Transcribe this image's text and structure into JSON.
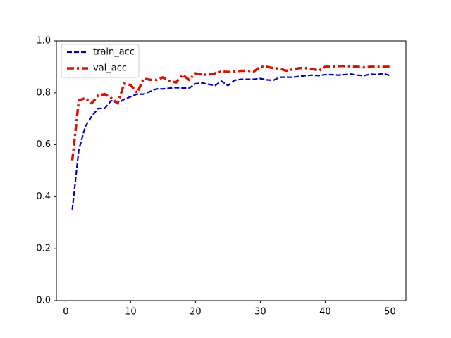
{
  "chart_data": {
    "type": "line",
    "x": [
      1,
      2,
      3,
      4,
      5,
      6,
      7,
      8,
      9,
      10,
      11,
      12,
      13,
      14,
      15,
      16,
      17,
      18,
      19,
      20,
      21,
      22,
      23,
      24,
      25,
      26,
      27,
      28,
      29,
      30,
      31,
      32,
      33,
      34,
      35,
      36,
      37,
      38,
      39,
      40,
      41,
      42,
      43,
      44,
      45,
      46,
      47,
      48,
      49,
      50
    ],
    "series": [
      {
        "name": "train_acc",
        "color": "#0000bb",
        "linestyle": "dashed",
        "values": [
          0.35,
          0.58,
          0.67,
          0.71,
          0.74,
          0.74,
          0.77,
          0.76,
          0.775,
          0.785,
          0.795,
          0.795,
          0.805,
          0.815,
          0.815,
          0.818,
          0.82,
          0.818,
          0.818,
          0.835,
          0.838,
          0.833,
          0.828,
          0.845,
          0.828,
          0.848,
          0.852,
          0.852,
          0.852,
          0.855,
          0.85,
          0.848,
          0.86,
          0.86,
          0.86,
          0.863,
          0.866,
          0.868,
          0.866,
          0.87,
          0.87,
          0.868,
          0.87,
          0.872,
          0.868,
          0.866,
          0.872,
          0.87,
          0.875,
          0.866
        ]
      },
      {
        "name": "val_acc",
        "color": "#dd1100",
        "linestyle": "dashdot",
        "values": [
          0.54,
          0.77,
          0.78,
          0.76,
          0.79,
          0.795,
          0.78,
          0.76,
          0.835,
          0.83,
          0.8,
          0.855,
          0.85,
          0.85,
          0.86,
          0.845,
          0.84,
          0.87,
          0.85,
          0.875,
          0.87,
          0.87,
          0.875,
          0.882,
          0.88,
          0.882,
          0.885,
          0.885,
          0.882,
          0.9,
          0.9,
          0.895,
          0.893,
          0.885,
          0.89,
          0.895,
          0.895,
          0.892,
          0.885,
          0.9,
          0.9,
          0.903,
          0.903,
          0.902,
          0.9,
          0.898,
          0.9,
          0.9,
          0.9,
          0.9
        ]
      }
    ],
    "xlim": [
      -1.45,
      52.45
    ],
    "xticks": [
      0,
      10,
      20,
      30,
      40,
      50
    ],
    "ylim": [
      0,
      1
    ],
    "yticks": [
      {
        "value": 0,
        "label": "0.0"
      },
      {
        "value": 0.2,
        "label": "0.2"
      },
      {
        "value": 0.4,
        "label": "0.4"
      },
      {
        "value": 0.6,
        "label": "0.6"
      },
      {
        "value": 0.8,
        "label": "0.8"
      },
      {
        "value": 1,
        "label": "1.0"
      }
    ],
    "legend": "upper left"
  }
}
